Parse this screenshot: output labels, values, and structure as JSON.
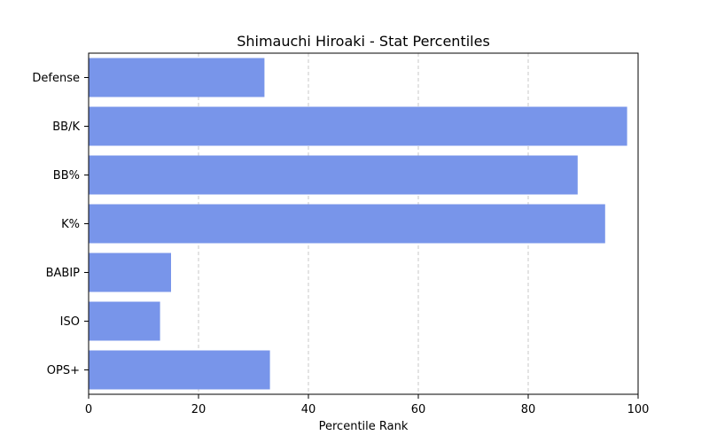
{
  "chart_data": {
    "type": "bar",
    "orientation": "horizontal",
    "title": "Shimauchi Hiroaki - Stat Percentiles",
    "xlabel": "Percentile Rank",
    "ylabel": "",
    "categories": [
      "Defense",
      "BB/K",
      "BB%",
      "K%",
      "BABIP",
      "ISO",
      "OPS+"
    ],
    "values": [
      32,
      98,
      89,
      94,
      15,
      13,
      33
    ],
    "xlim": [
      0,
      100
    ],
    "xticks": [
      0,
      20,
      40,
      60,
      80,
      100
    ],
    "grid": "x-dashed",
    "bar_color": "#7895EA",
    "grid_color": "#c8c8c8"
  }
}
